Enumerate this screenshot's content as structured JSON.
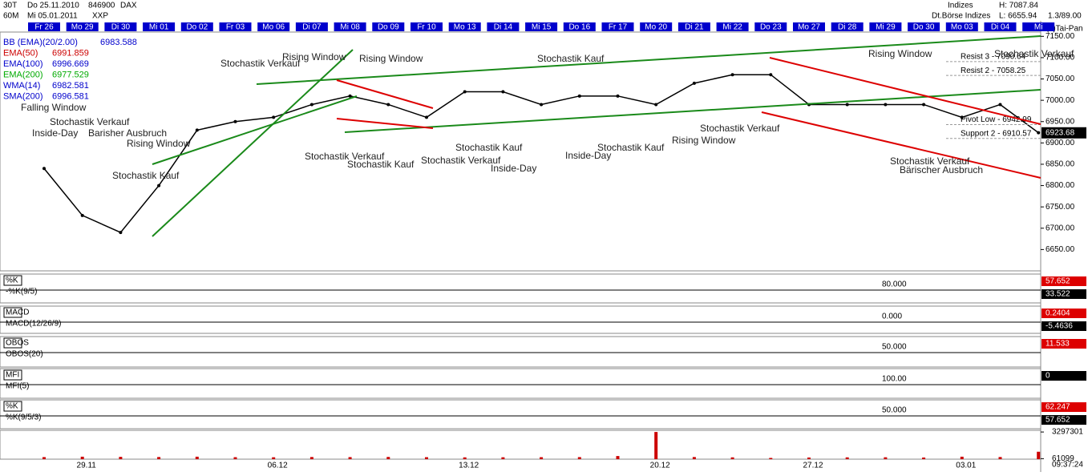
{
  "header": {
    "interval": "30T",
    "from": "Do 25.11.2010",
    "code": "846900",
    "name": "DAX",
    "tf": "60M",
    "to": "Mi 05.01.2011",
    "exchange": "XXP",
    "group": "Indizes",
    "market": "Dt.Börse Indizes",
    "high": "H: 7087.84",
    "low": "L: 6655.94",
    "ratio": "1.3/89.00",
    "brand": "(c)Tai-Pan",
    "time": "09:37:24"
  },
  "indicators": [
    {
      "name": "BB (EMA)(20/2.00)",
      "color": "#0000cc",
      "value": 6983.588
    },
    {
      "name": "EMA(50)",
      "color": "#cc0000",
      "value": 6991.859
    },
    {
      "name": "EMA(100)",
      "color": "#0000cc",
      "value": 6996.669
    },
    {
      "name": "EMA(200)",
      "color": "#00aa00",
      "value": 6977.529
    },
    {
      "name": "WMA(14)",
      "color": "#0000cc",
      "value": 6982.581
    },
    {
      "name": "SMA(200)",
      "color": "#0000cc",
      "value": 6996.581
    }
  ],
  "levels": [
    {
      "label": "Resist 3 - 7090.64",
      "value": 7090.64
    },
    {
      "label": "Resist 2 - 7058.25",
      "value": 7058.25
    },
    {
      "label": "Pivot Low - 6942.99",
      "value": 6942.99
    },
    {
      "label": "Support 2 - 6910.57",
      "value": 6910.57
    }
  ],
  "last": 6923.68,
  "annotations": [
    "Falling Window",
    "Stochastik Verkauf",
    "Inside-Day",
    "Barisher Ausbruch",
    "Rising Window",
    "Stochastik Kauf",
    "Stochastik Verkauf",
    "Rising Window",
    "Stochastik Verkauf",
    "Stochastik Kauf",
    "Rising Window",
    "Stochastik Verkauf",
    "Stochastik Kauf",
    "Inside-Day",
    "Stochastik Kauf",
    "Rising Window",
    "Stochastik Verkauf",
    "Stochastik Kauf",
    "Inside-Day",
    "Rising Window",
    "Stochastik Verkauf",
    "Stochastik Verkauf",
    "Bärischer Ausbruch"
  ],
  "panels": [
    {
      "label": "%K",
      "name": "-%K(9/5)",
      "level": "80.000",
      "readouts": [
        57.652,
        33.522
      ]
    },
    {
      "label": "MACD",
      "name": "MACD(12/26/9)",
      "level": "0.000",
      "readouts": [
        0.2404,
        -5.4636
      ]
    },
    {
      "label": "OBOS",
      "name": "OBOS(20)",
      "level": "50.000",
      "readouts": [
        11.533
      ]
    },
    {
      "label": "MFI",
      "name": "MFI(5)",
      "level": "100.00",
      "readouts": [
        -0.0
      ]
    },
    {
      "label": "%K",
      "name": "%K(9/5/3)",
      "level": "50.000",
      "readouts": [
        62.247,
        57.652
      ]
    }
  ],
  "dates": [
    "29.11",
    "06.12",
    "13.12",
    "20.12",
    "27.12",
    "03.01"
  ],
  "chart_data": [
    {
      "type": "line",
      "categories": [
        "Fr 26",
        "Mo 29",
        "Di 30",
        "Mi 01",
        "Do 02",
        "Fr 03",
        "Mo 06",
        "Di 07",
        "Mi 08",
        "Do 09",
        "Fr 10",
        "Mo 13",
        "Di 14",
        "Mi 15",
        "Do 16",
        "Fr 17",
        "Mo 20",
        "Di 21",
        "Mi 22",
        "Do 23",
        "Mo 27",
        "Di 28",
        "Mi 29",
        "Do 30",
        "Mo 03",
        "Di 04",
        "Mi"
      ],
      "series": [
        {
          "name": "DAX",
          "color": "#000000",
          "values": [
            6840,
            6730,
            6690,
            6800,
            6930,
            6950,
            6960,
            6990,
            7010,
            6990,
            6960,
            7020,
            7020,
            6990,
            7010,
            7010,
            6990,
            7040,
            7060,
            7060,
            6990,
            6990,
            6990,
            6990,
            6960,
            6990,
            6924
          ]
        }
      ],
      "ylim": [
        6600,
        7160
      ],
      "yticks": [
        {
          "value": 7150,
          "label": "7150.00"
        },
        {
          "value": 7100,
          "label": "7100.00"
        },
        {
          "value": 7050,
          "label": "7050.00"
        },
        {
          "value": 7000,
          "label": "7000.00"
        },
        {
          "value": 6950,
          "label": "6950.00"
        },
        {
          "value": 6900,
          "label": "6900.00"
        },
        {
          "value": 6850,
          "label": "6850.00"
        },
        {
          "value": 6800,
          "label": "6800.00"
        },
        {
          "value": 6750,
          "label": "6750.00"
        },
        {
          "value": 6700,
          "label": "6700.00"
        },
        {
          "value": 6650,
          "label": "6650.00"
        }
      ]
    },
    {
      "type": "bar",
      "color": "#cc0000",
      "values": [
        250000,
        300000,
        280000,
        260000,
        300000,
        240000,
        230000,
        260000,
        250000,
        270000,
        240000,
        220000,
        230000,
        240000,
        250000,
        380000,
        3297301,
        260000,
        220000,
        150000,
        200000,
        220000,
        230000,
        200000,
        300000,
        260000,
        900000
      ],
      "ylim": [
        0,
        3500000
      ],
      "yticks": [
        61099,
        3297301
      ]
    }
  ]
}
